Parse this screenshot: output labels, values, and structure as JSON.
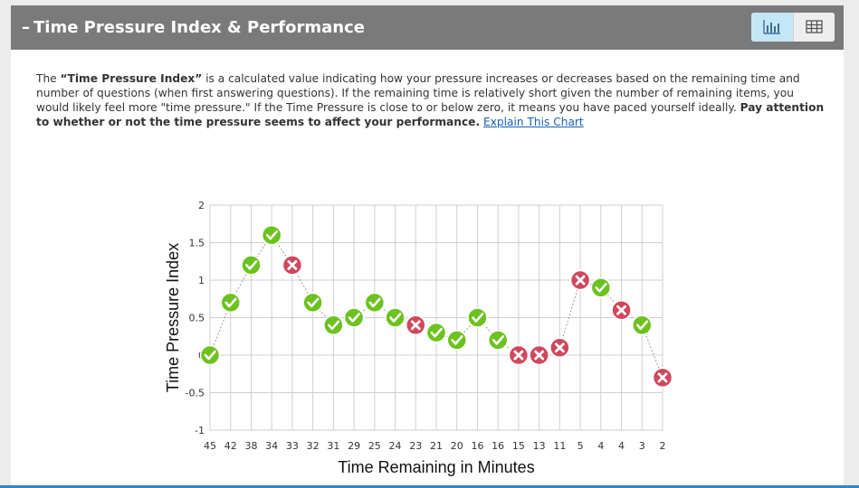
{
  "header": {
    "dash": "–",
    "title": "Time Pressure Index & Performance",
    "chart_view_icon": "bar-chart-icon",
    "table_view_icon": "table-grid-icon"
  },
  "description": {
    "intro": "The ",
    "term": "“Time Pressure Index”",
    "body": " is a calculated value indicating how your pressure increases or decreases based on the remaining time and number of questions (when first answering questions). If the remaining time is relatively short given the number of remaining items, you would likely feel more \"time pressure.\" If the Time Pressure is close to or below zero, it means you have paced yourself ideally. ",
    "emphasis": "Pay attention to whether or not the time pressure seems to affect your performance.",
    "link": "Explain This Chart"
  },
  "colors": {
    "correct": "#6cc21e",
    "incorrect": "#d0485c",
    "grid": "#cfcfcf",
    "connector": "#9a9a9a"
  },
  "chart_data": {
    "type": "scatter",
    "xlabel": "Time Remaining in Minutes",
    "ylabel": "Time Pressure Index",
    "ylim": [
      -1,
      2
    ],
    "yticks": [
      "2",
      "1.5",
      "1",
      "0.5",
      "0",
      "-0.5",
      "-1"
    ],
    "grid": true,
    "categories": [
      "45",
      "42",
      "38",
      "34",
      "33",
      "32",
      "31",
      "29",
      "25",
      "24",
      "23",
      "21",
      "20",
      "16",
      "16",
      "15",
      "13",
      "11",
      "5",
      "4",
      "4",
      "3",
      "2"
    ],
    "values": [
      0,
      0.7,
      1.2,
      1.6,
      1.2,
      0.7,
      0.4,
      0.5,
      0.7,
      0.5,
      0.4,
      0.3,
      0.2,
      0.5,
      0.2,
      0,
      0,
      0.1,
      1.0,
      0.9,
      0.6,
      0.4,
      -0.3
    ],
    "results": [
      "correct",
      "correct",
      "correct",
      "correct",
      "incorrect",
      "correct",
      "correct",
      "correct",
      "correct",
      "correct",
      "incorrect",
      "correct",
      "correct",
      "correct",
      "correct",
      "incorrect",
      "incorrect",
      "incorrect",
      "incorrect",
      "correct",
      "incorrect",
      "correct",
      "incorrect"
    ]
  }
}
